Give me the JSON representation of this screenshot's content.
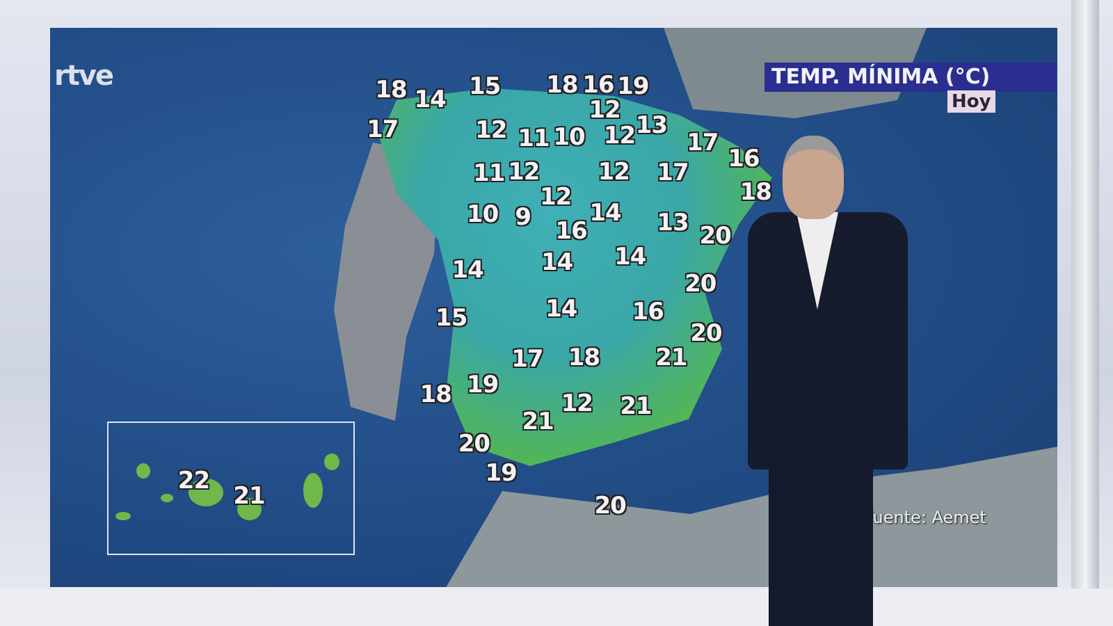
{
  "broadcast": {
    "logo": "rtve",
    "title": "TEMP. MÍNIMA (°C)",
    "day": "Hoy",
    "source": "Fuente: Aemet"
  },
  "colors": {
    "title_bg": "#2a2f8f",
    "sea": "#234f8a",
    "land_cold": "#3aa7a8",
    "land_warm": "#74c24a"
  },
  "temperatures": [
    18,
    14,
    15,
    18,
    16,
    19,
    17,
    12,
    11,
    10,
    12,
    12,
    13,
    17,
    16,
    18,
    11,
    12,
    12,
    17,
    12,
    10,
    9,
    16,
    14,
    13,
    20,
    14,
    14,
    14,
    20,
    15,
    14,
    16,
    20,
    17,
    18,
    21,
    18,
    19,
    12,
    21,
    21,
    20,
    19,
    20,
    22,
    21
  ]
}
